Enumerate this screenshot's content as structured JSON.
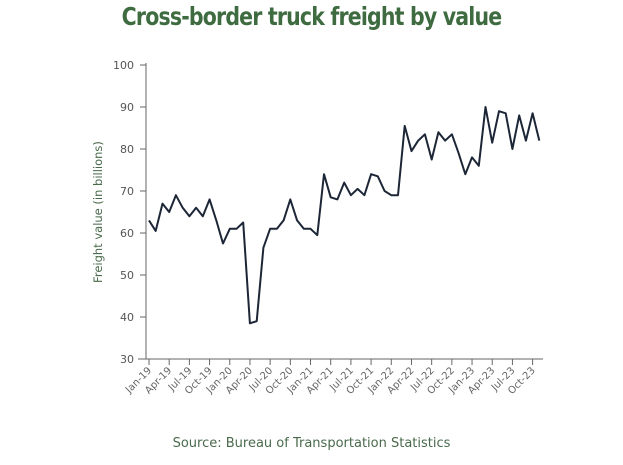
{
  "chart_data": {
    "type": "line",
    "title": "Cross-border truck freight by value",
    "ylabel": "Freight value (in billions)",
    "xlabel": "",
    "ylim": [
      30,
      100
    ],
    "yticks": [
      30,
      40,
      50,
      60,
      70,
      80,
      90,
      100
    ],
    "xtick_labels": [
      "Jan-19",
      "Apr-19",
      "Jul-19",
      "Oct-19",
      "Jan-20",
      "Apr-20",
      "Jul-20",
      "Oct-20",
      "Jan-21",
      "Apr-21",
      "Jul-21",
      "Oct-21",
      "Jan-22",
      "Apr-22",
      "Jul-22",
      "Oct-22",
      "Jan-23",
      "Apr-23",
      "Jul-23",
      "Oct-23"
    ],
    "x_start": "Jan-19",
    "x_end": "Nov-23",
    "grid": false,
    "line_color": "#1c2636",
    "values": [
      63,
      60.5,
      67,
      65,
      69,
      66,
      64,
      66,
      64,
      68,
      63,
      57.5,
      61,
      61,
      62.5,
      38.5,
      39,
      56.5,
      61,
      61,
      63,
      68,
      63,
      61,
      61,
      59.5,
      74,
      68.5,
      68,
      72,
      69,
      70.5,
      69,
      74,
      73.5,
      70,
      69,
      69,
      85.5,
      79.5,
      82,
      83.5,
      77.5,
      84,
      82,
      83.5,
      79,
      74,
      78,
      76,
      90,
      81.5,
      89,
      88.5,
      80,
      88,
      82,
      88.5,
      82
    ]
  },
  "source": "Source: Bureau of Transportation Statistics"
}
